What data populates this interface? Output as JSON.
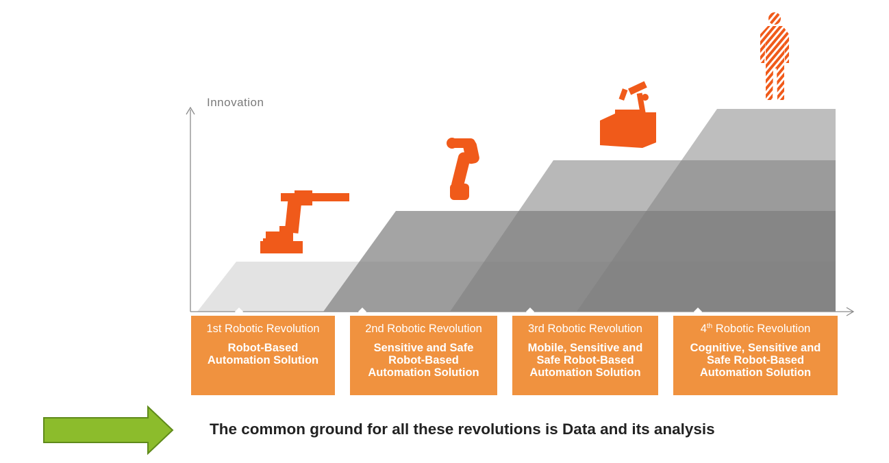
{
  "axis": {
    "y_label": "Innovation"
  },
  "colors": {
    "accent_orange": "#f0923f",
    "robot_orange": "#f05a1a",
    "arrow_green": "#8cbc2c",
    "step_shades": [
      "#d9d9d9",
      "#9a9a9a",
      "#8a8a8a",
      "#7a7a7a"
    ]
  },
  "revolutions": [
    {
      "ordinal": "1st",
      "sup": "",
      "title_rest": " Robotic Revolution",
      "lines": [
        "Robot-Based",
        "Automation Solution"
      ],
      "icon": "industrial-robot-arm-icon"
    },
    {
      "ordinal": "2nd",
      "sup": "",
      "title_rest": " Robotic Revolution",
      "lines": [
        "Sensitive and Safe",
        "Robot-Based",
        "Automation Solution"
      ],
      "icon": "collaborative-robot-arm-icon"
    },
    {
      "ordinal": "3rd",
      "sup": "",
      "title_rest": " Robotic Revolution",
      "lines": [
        "Mobile, Sensitive and",
        "Safe Robot-Based",
        "Automation Solution"
      ],
      "icon": "mobile-robot-icon"
    },
    {
      "ordinal": "4",
      "sup": "th",
      "title_rest": " Robotic Revolution",
      "lines": [
        "Cognitive, Sensitive and",
        "Safe Robot-Based",
        "Automation Solution"
      ],
      "icon": "human-figure-icon"
    }
  ],
  "footer": {
    "text": "The common ground for all these revolutions is Data and its analysis",
    "icon": "right-arrow-icon"
  }
}
